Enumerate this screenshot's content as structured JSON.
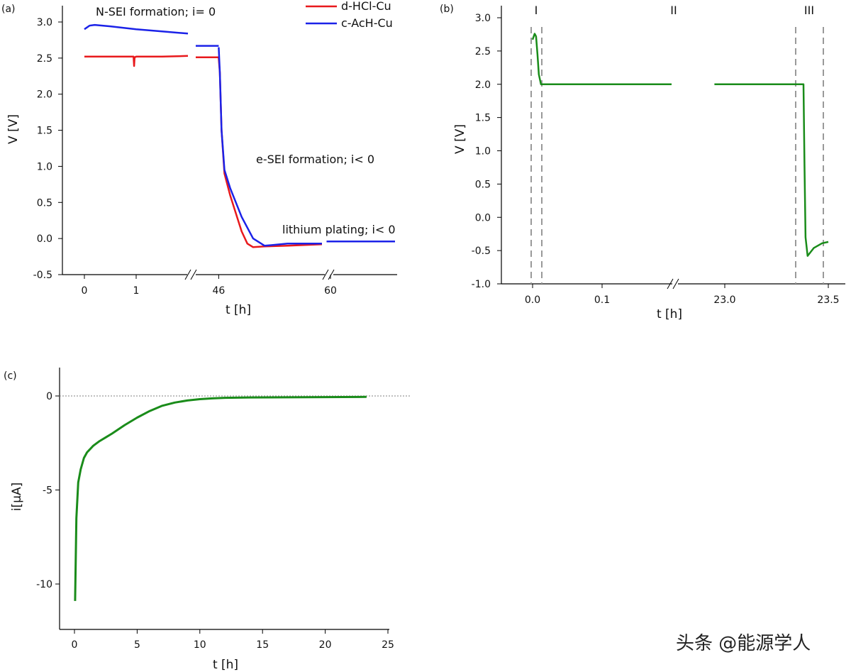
{
  "watermark": "头条 @能源学人",
  "chart_data": [
    {
      "panel": "(a)",
      "type": "line",
      "xlabel": "t [h]",
      "ylabel": "V [V]",
      "ylim": [
        -0.5,
        3.25
      ],
      "yticks": [
        "-0.5",
        "0.0",
        "0.5",
        "1.0",
        "1.5",
        "2.0",
        "2.5",
        "3.0"
      ],
      "xticks": [
        "0",
        "1",
        "46",
        "60"
      ],
      "x_axis_breaks": 2,
      "legend_position": "top-right",
      "series": [
        {
          "name": "d-HCl-Cu",
          "color": "#e8191c",
          "segments": [
            {
              "x": [
                0,
                0.5,
                0.95,
                0.96,
                0.97,
                1.0,
                1.5,
                2.0
              ],
              "y": [
                2.52,
                2.52,
                2.52,
                2.39,
                2.51,
                2.52,
                2.52,
                2.53
              ]
            },
            {
              "x": [
                44.0,
                46.0
              ],
              "y": [
                2.51,
                2.51
              ]
            },
            {
              "x": [
                46.0,
                46.1,
                46.25,
                46.5,
                47.0,
                48.0,
                48.5,
                49.0,
                50.0,
                52.0,
                55.0
              ],
              "y": [
                2.5,
                2.3,
                1.5,
                0.9,
                0.6,
                0.1,
                -0.07,
                -0.12,
                -0.11,
                -0.1,
                -0.08
              ]
            }
          ]
        },
        {
          "name": "c-AcH-Cu",
          "color": "#1b22e8",
          "segments": [
            {
              "x": [
                0,
                0.1,
                0.2,
                0.5,
                1.0,
                1.5,
                2.0
              ],
              "y": [
                2.9,
                2.95,
                2.96,
                2.94,
                2.9,
                2.87,
                2.84
              ]
            },
            {
              "x": [
                44.0,
                46.0
              ],
              "y": [
                2.67,
                2.67
              ]
            },
            {
              "x": [
                46.0,
                46.1,
                46.25,
                46.5,
                47.0,
                48.0,
                49.0,
                50.0,
                52.0,
                55.0
              ],
              "y": [
                2.65,
                2.3,
                1.5,
                0.95,
                0.7,
                0.3,
                0.0,
                -0.1,
                -0.07,
                -0.07
              ]
            },
            {
              "x": [
                59.7,
                65
              ],
              "y": [
                -0.04,
                -0.04
              ]
            }
          ]
        }
      ],
      "annotations": [
        {
          "text": "N-SEI formation;  i= 0"
        },
        {
          "text": "e-SEI formation;  i< 0"
        },
        {
          "text": "lithium  plating;  i< 0"
        }
      ]
    },
    {
      "panel": "(b)",
      "type": "line",
      "xlabel": "t [h]",
      "ylabel": "V [V]",
      "ylim": [
        -1.0,
        3.25
      ],
      "yticks": [
        "-1.0",
        "-0.5",
        "0.0",
        "0.5",
        "1.0",
        "1.5",
        "2.0",
        "2.5",
        "3.0"
      ],
      "xticks": [
        "0.0",
        "0.1",
        "23.0",
        "23.5"
      ],
      "x_axis_breaks": 1,
      "regions": [
        "I",
        "II",
        "III"
      ],
      "series": [
        {
          "name": "",
          "color": "#1a8c1a",
          "segments": [
            {
              "x": [
                0.0,
                0.003,
                0.005,
                0.007,
                0.009,
                0.012,
                0.02,
                0.1,
                0.2
              ],
              "y": [
                2.67,
                2.76,
                2.72,
                2.45,
                2.15,
                2.0,
                2.0,
                2.0,
                2.0
              ]
            },
            {
              "x": [
                22.95,
                23.0,
                23.3,
                23.38,
                23.385,
                23.39,
                23.4,
                23.43,
                23.47,
                23.5
              ],
              "y": [
                2.0,
                2.0,
                2.0,
                2.0,
                0.8,
                -0.3,
                -0.58,
                -0.46,
                -0.39,
                -0.37
              ]
            }
          ]
        }
      ]
    },
    {
      "panel": "(c)",
      "type": "line",
      "xlabel": "t [h]",
      "ylabel": "i[μA]",
      "ylim": [
        -12.5,
        1.8
      ],
      "xlim": [
        -1.2,
        25
      ],
      "yticks": [
        "0",
        "-5",
        "-10"
      ],
      "xticks": [
        "0",
        "5",
        "10",
        "15",
        "20",
        "25"
      ],
      "zero_reference_line": true,
      "series": [
        {
          "name": "",
          "color": "#1a8c1a",
          "x": [
            0.05,
            0.15,
            0.3,
            0.5,
            0.75,
            1.0,
            1.5,
            2.0,
            2.5,
            3.0,
            4.0,
            5.0,
            6.0,
            7.0,
            8.0,
            9.0,
            10.0,
            11.0,
            12.0,
            14.0,
            17.0,
            20.0,
            23.3
          ],
          "y": [
            -10.9,
            -6.5,
            -4.6,
            -3.9,
            -3.3,
            -3.0,
            -2.65,
            -2.4,
            -2.2,
            -2.0,
            -1.55,
            -1.15,
            -0.8,
            -0.52,
            -0.35,
            -0.24,
            -0.17,
            -0.13,
            -0.1,
            -0.08,
            -0.07,
            -0.06,
            -0.05
          ]
        }
      ]
    }
  ]
}
